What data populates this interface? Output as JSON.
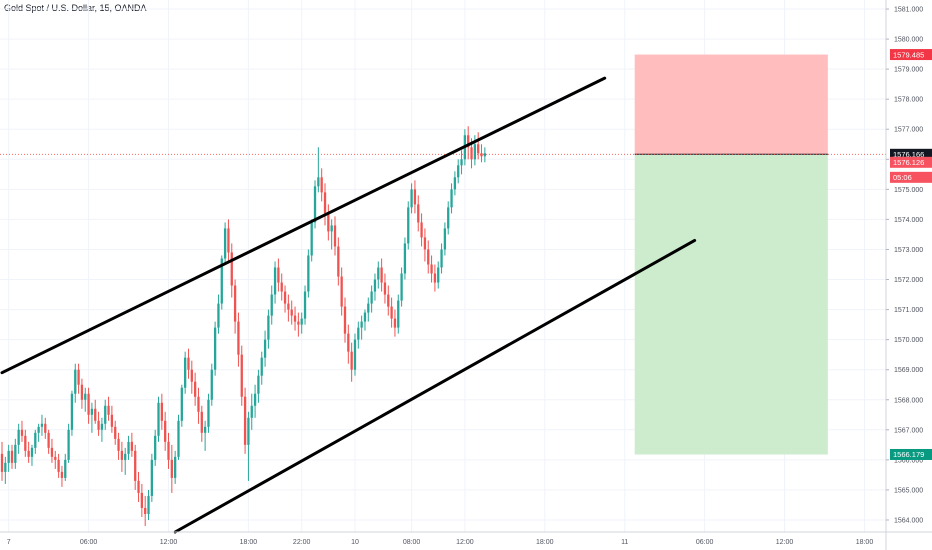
{
  "header": {
    "title": "Gold Spot / U.S. Dollar, 15, OANDA"
  },
  "chart_data": {
    "type": "candlestick",
    "title": "Gold Spot / U.S. Dollar, 15, OANDA",
    "ylim": [
      1563.6,
      1581.3
    ],
    "y_ticks": [
      "1564.000",
      "1565.000",
      "1566.000",
      "1567.000",
      "1568.000",
      "1569.000",
      "1570.000",
      "1571.000",
      "1572.000",
      "1573.000",
      "1574.000",
      "1575.000",
      "1576.000",
      "1577.000",
      "1578.000",
      "1579.000",
      "1580.000",
      "1581.000"
    ],
    "x_ticks": [
      {
        "label": "7",
        "i": 2
      },
      {
        "label": "06:00",
        "i": 26
      },
      {
        "label": "12:00",
        "i": 50
      },
      {
        "label": "18:00",
        "i": 74
      },
      {
        "label": "22:00",
        "i": 90
      },
      {
        "label": "10",
        "i": 106
      },
      {
        "label": "08:00",
        "i": 123
      },
      {
        "label": "12:00",
        "i": 139
      },
      {
        "label": "18:00",
        "i": 163
      },
      {
        "label": "11",
        "i": 187
      },
      {
        "label": "06:00",
        "i": 211
      },
      {
        "label": "12:00",
        "i": 235
      },
      {
        "label": "18:00",
        "i": 259
      }
    ],
    "candles": [
      [
        1566.2,
        1566.6,
        1565.3,
        1565.6
      ],
      [
        1565.6,
        1566.1,
        1565.2,
        1565.9
      ],
      [
        1565.9,
        1566.5,
        1565.6,
        1566.3
      ],
      [
        1566.3,
        1566.5,
        1565.7,
        1565.9
      ],
      [
        1565.9,
        1566.7,
        1565.7,
        1566.5
      ],
      [
        1566.5,
        1567.2,
        1566.2,
        1567.0
      ],
      [
        1567.0,
        1567.3,
        1566.6,
        1566.8
      ],
      [
        1566.8,
        1567.0,
        1566.1,
        1566.3
      ],
      [
        1566.3,
        1566.6,
        1565.9,
        1566.1
      ],
      [
        1566.1,
        1566.5,
        1565.8,
        1566.4
      ],
      [
        1566.4,
        1567.0,
        1566.2,
        1566.9
      ],
      [
        1566.9,
        1567.2,
        1566.6,
        1567.1
      ],
      [
        1567.1,
        1567.5,
        1566.8,
        1567.2
      ],
      [
        1567.2,
        1567.4,
        1566.7,
        1566.9
      ],
      [
        1566.9,
        1567.0,
        1566.2,
        1566.4
      ],
      [
        1566.4,
        1566.7,
        1565.9,
        1566.1
      ],
      [
        1566.1,
        1566.3,
        1565.7,
        1566.0
      ],
      [
        1566.0,
        1566.2,
        1565.4,
        1565.6
      ],
      [
        1565.6,
        1565.8,
        1565.1,
        1565.4
      ],
      [
        1565.4,
        1566.2,
        1565.3,
        1566.0
      ],
      [
        1566.0,
        1567.2,
        1565.9,
        1567.0
      ],
      [
        1567.0,
        1568.3,
        1566.8,
        1568.2
      ],
      [
        1568.2,
        1569.2,
        1567.9,
        1569.0
      ],
      [
        1569.0,
        1569.2,
        1568.2,
        1568.5
      ],
      [
        1568.5,
        1568.7,
        1567.7,
        1568.0
      ],
      [
        1568.0,
        1568.4,
        1567.6,
        1568.2
      ],
      [
        1568.2,
        1568.4,
        1567.2,
        1567.5
      ],
      [
        1567.5,
        1567.9,
        1566.9,
        1567.7
      ],
      [
        1567.7,
        1568.0,
        1567.2,
        1567.3
      ],
      [
        1567.3,
        1567.6,
        1566.8,
        1567.0
      ],
      [
        1567.0,
        1567.4,
        1566.6,
        1567.2
      ],
      [
        1567.2,
        1568.0,
        1567.0,
        1567.8
      ],
      [
        1567.8,
        1568.1,
        1567.3,
        1567.5
      ],
      [
        1567.5,
        1567.8,
        1566.9,
        1567.1
      ],
      [
        1567.1,
        1567.3,
        1566.5,
        1566.7
      ],
      [
        1566.7,
        1566.9,
        1566.0,
        1566.3
      ],
      [
        1566.3,
        1566.6,
        1565.6,
        1566.0
      ],
      [
        1566.0,
        1566.4,
        1565.5,
        1566.2
      ],
      [
        1566.2,
        1566.8,
        1566.0,
        1566.6
      ],
      [
        1566.6,
        1566.9,
        1566.1,
        1566.3
      ],
      [
        1566.3,
        1566.5,
        1565.0,
        1565.3
      ],
      [
        1565.3,
        1565.6,
        1564.6,
        1564.9
      ],
      [
        1564.9,
        1565.2,
        1564.1,
        1564.4
      ],
      [
        1564.4,
        1564.8,
        1563.8,
        1564.2
      ],
      [
        1564.2,
        1565.0,
        1564.0,
        1564.8
      ],
      [
        1564.8,
        1566.2,
        1564.6,
        1566.0
      ],
      [
        1566.0,
        1567.0,
        1565.8,
        1566.8
      ],
      [
        1566.8,
        1568.1,
        1566.6,
        1567.9
      ],
      [
        1567.9,
        1568.2,
        1567.0,
        1567.3
      ],
      [
        1567.3,
        1567.6,
        1566.3,
        1566.6
      ],
      [
        1566.6,
        1566.9,
        1565.7,
        1566.0
      ],
      [
        1566.0,
        1566.5,
        1564.9,
        1565.4
      ],
      [
        1565.4,
        1566.3,
        1565.2,
        1566.1
      ],
      [
        1566.1,
        1567.5,
        1566.0,
        1567.3
      ],
      [
        1567.3,
        1568.5,
        1567.1,
        1568.4
      ],
      [
        1568.4,
        1569.6,
        1568.2,
        1569.4
      ],
      [
        1569.4,
        1569.7,
        1568.7,
        1569.0
      ],
      [
        1569.0,
        1569.3,
        1568.2,
        1568.6
      ],
      [
        1568.6,
        1568.9,
        1567.8,
        1568.1
      ],
      [
        1568.1,
        1568.4,
        1567.2,
        1567.6
      ],
      [
        1567.6,
        1567.8,
        1566.6,
        1566.9
      ],
      [
        1566.9,
        1567.3,
        1566.3,
        1567.1
      ],
      [
        1567.1,
        1568.2,
        1566.9,
        1568.0
      ],
      [
        1568.0,
        1569.2,
        1567.8,
        1569.0
      ],
      [
        1569.0,
        1570.6,
        1568.8,
        1570.4
      ],
      [
        1570.4,
        1571.5,
        1570.2,
        1571.2
      ],
      [
        1571.2,
        1572.8,
        1571.0,
        1572.7
      ],
      [
        1572.7,
        1573.9,
        1572.5,
        1573.7
      ],
      [
        1573.7,
        1574.0,
        1572.6,
        1572.9
      ],
      [
        1572.9,
        1573.2,
        1571.4,
        1571.8
      ],
      [
        1571.8,
        1572.0,
        1570.2,
        1570.6
      ],
      [
        1570.6,
        1570.9,
        1569.1,
        1569.5
      ],
      [
        1569.5,
        1569.8,
        1567.8,
        1568.1
      ],
      [
        1568.1,
        1568.4,
        1566.2,
        1566.5
      ],
      [
        1566.5,
        1567.6,
        1565.3,
        1567.4
      ],
      [
        1567.4,
        1568.2,
        1567.0,
        1567.8
      ],
      [
        1567.8,
        1568.5,
        1567.4,
        1568.2
      ],
      [
        1568.2,
        1569.0,
        1567.9,
        1568.8
      ],
      [
        1568.8,
        1569.6,
        1568.5,
        1569.4
      ],
      [
        1569.4,
        1570.3,
        1569.1,
        1570.0
      ],
      [
        1570.0,
        1571.0,
        1569.7,
        1570.8
      ],
      [
        1570.8,
        1571.8,
        1570.5,
        1571.5
      ],
      [
        1571.5,
        1572.6,
        1571.2,
        1572.4
      ],
      [
        1572.4,
        1572.7,
        1571.6,
        1571.9
      ],
      [
        1571.9,
        1572.2,
        1571.3,
        1571.6
      ],
      [
        1571.6,
        1571.8,
        1570.9,
        1571.2
      ],
      [
        1571.2,
        1571.5,
        1570.6,
        1571.0
      ],
      [
        1571.0,
        1571.3,
        1570.5,
        1570.8
      ],
      [
        1570.8,
        1571.1,
        1570.3,
        1570.6
      ],
      [
        1570.6,
        1570.9,
        1570.1,
        1570.5
      ],
      [
        1570.5,
        1570.9,
        1570.2,
        1570.7
      ],
      [
        1570.7,
        1571.8,
        1570.5,
        1571.6
      ],
      [
        1571.6,
        1573.0,
        1571.4,
        1572.8
      ],
      [
        1572.8,
        1574.0,
        1572.6,
        1573.9
      ],
      [
        1573.9,
        1575.3,
        1573.7,
        1575.1
      ],
      [
        1575.1,
        1576.4,
        1574.9,
        1575.4
      ],
      [
        1575.4,
        1575.7,
        1574.6,
        1574.9
      ],
      [
        1574.9,
        1575.2,
        1573.8,
        1574.2
      ],
      [
        1574.2,
        1574.5,
        1573.3,
        1573.6
      ],
      [
        1573.6,
        1574.0,
        1573.0,
        1573.8
      ],
      [
        1573.8,
        1574.1,
        1572.8,
        1573.1
      ],
      [
        1573.1,
        1573.4,
        1571.8,
        1572.1
      ],
      [
        1572.1,
        1572.4,
        1570.8,
        1571.1
      ],
      [
        1571.1,
        1571.4,
        1569.9,
        1570.2
      ],
      [
        1570.2,
        1570.5,
        1569.2,
        1569.6
      ],
      [
        1569.6,
        1569.9,
        1568.6,
        1569.0
      ],
      [
        1569.0,
        1570.2,
        1568.8,
        1570.0
      ],
      [
        1570.0,
        1570.6,
        1569.7,
        1570.4
      ],
      [
        1570.4,
        1570.8,
        1570.0,
        1570.6
      ],
      [
        1570.6,
        1571.0,
        1570.3,
        1570.9
      ],
      [
        1570.9,
        1571.4,
        1570.6,
        1571.2
      ],
      [
        1571.2,
        1571.8,
        1570.9,
        1571.6
      ],
      [
        1571.6,
        1572.2,
        1571.3,
        1572.0
      ],
      [
        1572.0,
        1572.6,
        1571.7,
        1572.4
      ],
      [
        1572.4,
        1572.7,
        1571.6,
        1571.9
      ],
      [
        1571.9,
        1572.2,
        1571.2,
        1571.5
      ],
      [
        1571.5,
        1571.8,
        1570.8,
        1571.1
      ],
      [
        1571.1,
        1571.4,
        1570.4,
        1570.7
      ],
      [
        1570.7,
        1571.0,
        1570.1,
        1570.4
      ],
      [
        1570.4,
        1571.5,
        1570.2,
        1571.3
      ],
      [
        1571.3,
        1572.4,
        1571.1,
        1572.2
      ],
      [
        1572.2,
        1573.4,
        1572.0,
        1573.2
      ],
      [
        1573.2,
        1574.6,
        1573.0,
        1574.4
      ],
      [
        1574.4,
        1575.2,
        1574.2,
        1575.0
      ],
      [
        1575.0,
        1575.3,
        1574.2,
        1574.5
      ],
      [
        1574.5,
        1574.8,
        1573.6,
        1573.9
      ],
      [
        1573.9,
        1574.2,
        1573.1,
        1573.4
      ],
      [
        1573.4,
        1573.7,
        1572.6,
        1573.0
      ],
      [
        1573.0,
        1573.3,
        1572.2,
        1572.5
      ],
      [
        1572.5,
        1572.8,
        1571.9,
        1572.2
      ],
      [
        1572.2,
        1572.5,
        1571.6,
        1571.9
      ],
      [
        1571.9,
        1572.6,
        1571.7,
        1572.4
      ],
      [
        1572.4,
        1573.2,
        1572.2,
        1573.0
      ],
      [
        1573.0,
        1573.9,
        1572.8,
        1573.7
      ],
      [
        1573.7,
        1574.6,
        1573.5,
        1574.4
      ],
      [
        1574.4,
        1575.2,
        1574.2,
        1575.0
      ],
      [
        1575.0,
        1575.6,
        1574.8,
        1575.4
      ],
      [
        1575.4,
        1576.0,
        1575.2,
        1575.8
      ],
      [
        1575.8,
        1576.3,
        1575.5,
        1576.0
      ],
      [
        1576.0,
        1577.0,
        1575.8,
        1576.8
      ],
      [
        1576.8,
        1577.1,
        1576.0,
        1576.4
      ],
      [
        1576.4,
        1576.7,
        1575.7,
        1576.0
      ],
      [
        1576.0,
        1576.8,
        1575.8,
        1576.5
      ],
      [
        1576.5,
        1576.9,
        1576.0,
        1576.2
      ],
      [
        1576.2,
        1576.5,
        1575.9,
        1576.1
      ],
      [
        1576.1,
        1576.4,
        1575.9,
        1576.2
      ]
    ],
    "channel_lines": [
      {
        "name": "upper",
        "from": {
          "i": 0,
          "y": 1568.9
        },
        "to": {
          "i": 181,
          "y": 1578.7
        }
      },
      {
        "name": "lower",
        "from": {
          "i": 52,
          "y": 1563.6
        },
        "to": {
          "i": 208,
          "y": 1573.3
        }
      }
    ],
    "position": {
      "type": "short",
      "entry": 1576.166,
      "stop": 1579.485,
      "target": 1566.179,
      "from_i": 190,
      "to_i": 248,
      "stop_color": "#ffbdbd",
      "target_color": "#cdeccd"
    },
    "price_tags": [
      {
        "value": 1579.485,
        "label": "1579.485",
        "color": "#f23645"
      },
      {
        "value": 1576.166,
        "label": "1576.166",
        "color": "#131722"
      },
      {
        "value": 1575.9,
        "label": "1576.126",
        "color": "#f7525f"
      },
      {
        "value": 1575.4,
        "label": "05:06",
        "color": "#f7525f"
      },
      {
        "value": 1566.179,
        "label": "1566.179",
        "color": "#089981"
      }
    ],
    "colors": {
      "up": "#26a69a",
      "down": "#ef5350",
      "channel": "#000000",
      "last_price_line": "#ef5350"
    }
  }
}
